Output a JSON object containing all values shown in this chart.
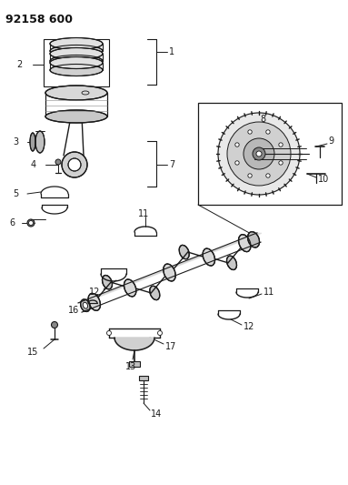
{
  "title": "92158 600",
  "bg_color": "#ffffff",
  "line_color": "#1a1a1a",
  "title_fontsize": 9,
  "label_fontsize": 7,
  "fig_width": 3.83,
  "fig_height": 5.33,
  "dpi": 100
}
